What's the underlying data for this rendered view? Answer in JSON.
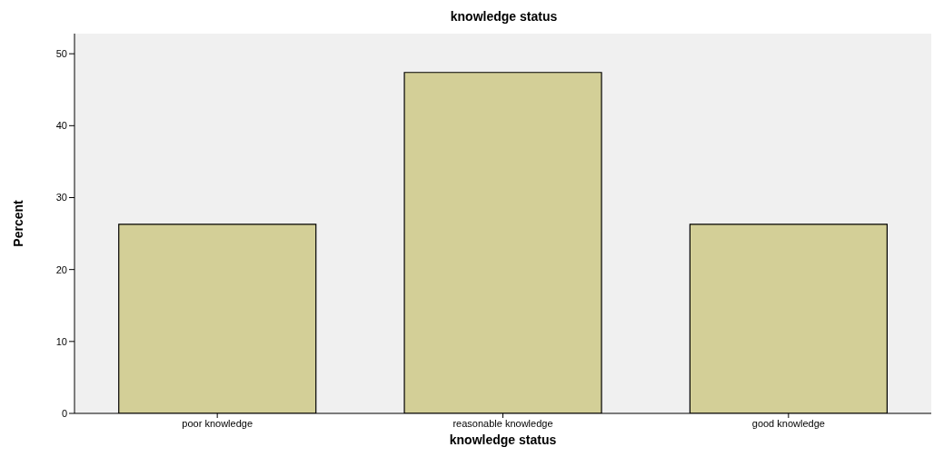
{
  "chart_data": {
    "type": "bar",
    "title": "knowledge status",
    "xlabel": "knowledge status",
    "ylabel": "Percent",
    "categories": [
      "poor knowledge",
      "reasonable knowledge",
      "good knowledge"
    ],
    "values": [
      26.3,
      47.4,
      26.3
    ],
    "color": "#d3cf97",
    "ylim": [
      0,
      52.8
    ],
    "yticks": [
      0,
      10,
      20,
      30,
      40,
      50
    ],
    "grid": false
  }
}
